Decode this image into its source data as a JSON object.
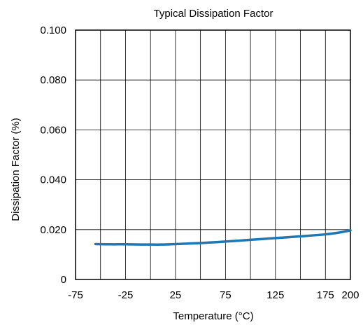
{
  "chart_data": {
    "type": "line",
    "title": "Typical Dissipation Factor",
    "xlabel": "Temperature (°C)",
    "ylabel": "Dissipation Factor (%)",
    "xlim": [
      -75,
      200
    ],
    "ylim": [
      0,
      0.1
    ],
    "x_ticks": [
      -75,
      -25,
      25,
      75,
      125,
      175,
      200
    ],
    "x_tick_labels": [
      "-75",
      "-25",
      "25",
      "75",
      "125",
      "175",
      "200"
    ],
    "x_grid": [
      -75,
      -50,
      -25,
      0,
      25,
      50,
      75,
      100,
      125,
      150,
      175,
      200
    ],
    "y_ticks": [
      0,
      0.02,
      0.04,
      0.06,
      0.08,
      0.1
    ],
    "y_tick_labels": [
      "0",
      "0.020",
      "0.040",
      "0.060",
      "0.080",
      "0.100"
    ],
    "grid": true,
    "series": [
      {
        "color": "#1f77b4",
        "x": [
          -55,
          -40,
          -25,
          -10,
          0,
          10,
          25,
          50,
          75,
          100,
          125,
          150,
          175,
          190,
          200
        ],
        "y": [
          0.0142,
          0.0141,
          0.0141,
          0.014,
          0.014,
          0.014,
          0.0142,
          0.0146,
          0.0152,
          0.0159,
          0.0166,
          0.0173,
          0.0181,
          0.0189,
          0.0197
        ]
      }
    ]
  }
}
